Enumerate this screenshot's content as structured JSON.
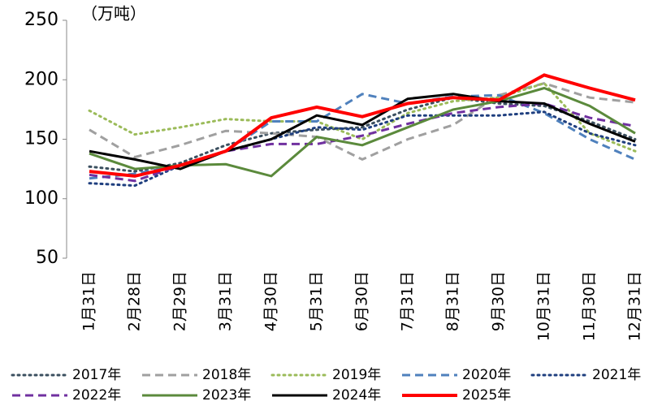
{
  "chart_data": {
    "type": "line",
    "unit_label": "（万吨）",
    "categories": [
      "1月31日",
      "2月28日",
      "2月29日",
      "3月31日",
      "4月30日",
      "5月31日",
      "6月30日",
      "7月31日",
      "8月31日",
      "9月30日",
      "10月31日",
      "11月30日",
      "12月31日"
    ],
    "ylim": [
      50,
      250
    ],
    "yticks": [
      50,
      100,
      150,
      200,
      250
    ],
    "series": [
      {
        "name": "2017年",
        "color": "#3b4f5f",
        "dash": "dot",
        "values": [
          127,
          123,
          130,
          145,
          155,
          158,
          160,
          175,
          185,
          180,
          178,
          165,
          150
        ]
      },
      {
        "name": "2018年",
        "color": "#a0a0a0",
        "dash": "dash",
        "values": [
          158,
          135,
          145,
          157,
          155,
          152,
          133,
          150,
          162,
          187,
          197,
          185,
          181
        ]
      },
      {
        "name": "2019年",
        "color": "#9bbb59",
        "dash": "dot",
        "values": [
          174,
          154,
          160,
          167,
          165,
          165,
          150,
          172,
          182,
          185,
          197,
          155,
          140
        ]
      },
      {
        "name": "2020年",
        "color": "#4f81bd",
        "dash": "dash",
        "values": [
          117,
          121,
          128,
          140,
          165,
          165,
          188,
          180,
          186,
          187,
          172,
          150,
          133
        ]
      },
      {
        "name": "2021年",
        "color": "#1f3f7f",
        "dash": "dot",
        "values": [
          113,
          111,
          128,
          140,
          150,
          160,
          158,
          170,
          170,
          170,
          173,
          155,
          145
        ]
      },
      {
        "name": "2022年",
        "color": "#7030a0",
        "dash": "dash",
        "values": [
          120,
          115,
          128,
          140,
          146,
          146,
          153,
          163,
          172,
          177,
          180,
          168,
          161
        ]
      },
      {
        "name": "2023年",
        "color": "#5b8a3c",
        "dash": "solid",
        "values": [
          138,
          125,
          128,
          129,
          119,
          152,
          145,
          160,
          175,
          182,
          193,
          178,
          155
        ]
      },
      {
        "name": "2024年",
        "color": "#000000",
        "dash": "solid",
        "values": [
          140,
          133,
          125,
          140,
          150,
          170,
          162,
          184,
          188,
          182,
          180,
          163,
          148
        ]
      },
      {
        "name": "2025年",
        "color": "#ff0000",
        "dash": "solid",
        "width": 4,
        "values": [
          123,
          119,
          128,
          140,
          168,
          177,
          169,
          180,
          185,
          183,
          204,
          193,
          183
        ]
      }
    ]
  }
}
